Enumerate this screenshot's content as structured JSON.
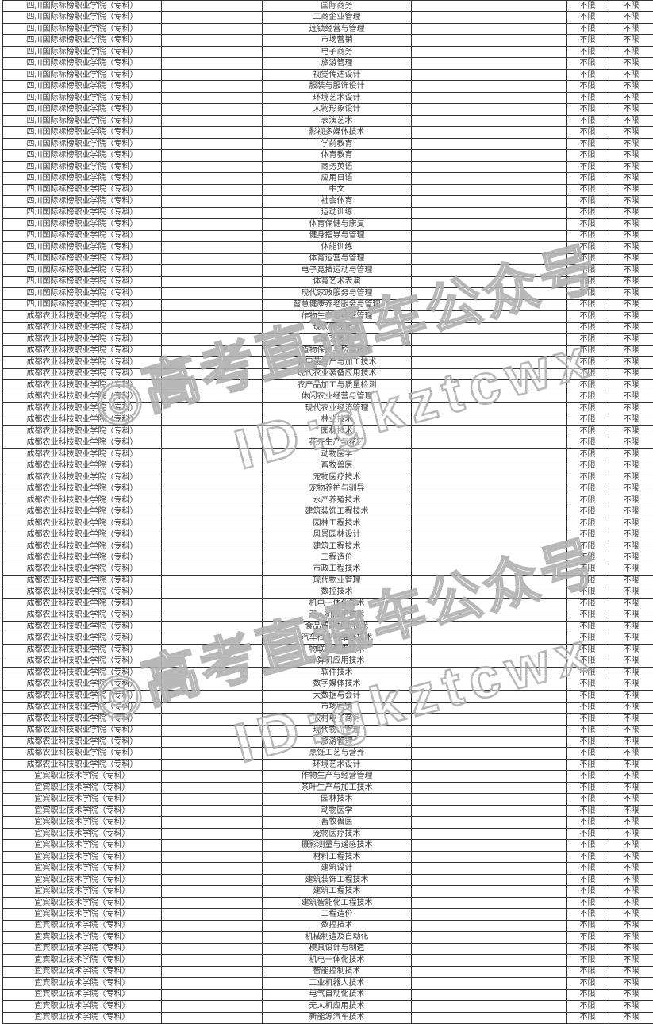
{
  "watermark": {
    "line1": "◎高考直通车公众号",
    "line2": "ID:gkztcwx"
  },
  "colors": {
    "text": "#3a3a3a",
    "border": "#333333",
    "watermark_stroke": "#acacac",
    "background": "#ffffff"
  },
  "table": {
    "no_limit_label": "不限",
    "empty_value": "",
    "groups": [
      {
        "college": "四川国际标榜职业学院（专科）",
        "majors": [
          "国际商务",
          "工商企业管理",
          "连锁经营与管理",
          "市场营销",
          "电子商务",
          "旅游管理",
          "视觉传达设计",
          "服装与服饰设计",
          "环境艺术设计",
          "人物形象设计",
          "表演艺术",
          "影视多媒体技术",
          "学前教育",
          "体育教育",
          "商务英语",
          "应用日语",
          "中文",
          "社会体育",
          "运动训练",
          "体育保健与康复",
          "健身指导与管理",
          "体能训练",
          "体育运营与管理",
          "电子竞技运动与管理",
          "体育艺术表演",
          "现代家政服务与管理",
          "智慧健康养老服务与管理"
        ]
      },
      {
        "college": "成都农业科技职业学院（专科）",
        "majors": [
          "作物生产与经营管理",
          "现代农业技术",
          "园艺技术",
          "植物保护与检疫技术",
          "食用菌生产与加工技术",
          "现代农业装备应用技术",
          "农产品加工与质量检测",
          "休闲农业经营与管理",
          "现代农业经济管理",
          "林业技术",
          "园林技术",
          "花卉生产与花艺",
          "动物医学",
          "畜牧兽医",
          "宠物医疗技术",
          "宠物养护与驯导",
          "水产养殖技术",
          "建筑装饰工程技术",
          "园林工程技术",
          "风景园林设计",
          "建筑工程技术",
          "工程造价",
          "市政工程技术",
          "现代物业管理",
          "数控技术",
          "机电一体化技术",
          "无人机应用技术",
          "食品智能加工技术",
          "汽车检测与维修技术",
          "物联网应用技术",
          "计算机应用技术",
          "软件技术",
          "数字媒体技术",
          "大数据与会计",
          "市场营销",
          "农村电子商务",
          "现代物流管理",
          "旅游管理",
          "烹饪工艺与营养",
          "环境艺术设计"
        ]
      },
      {
        "college": "宜宾职业技术学院（专科）",
        "majors": [
          "作物生产与经营管理",
          "茶叶生产与加工技术",
          "园林技术",
          "动物医学",
          "畜牧兽医",
          "宠物医疗技术",
          "摄影测量与遥感技术",
          "材料工程技术",
          "建筑设计",
          "建筑装饰工程技术",
          "建筑工程技术",
          "建筑智能化工程技术",
          "工程造价",
          "数控技术",
          "机械制造及自动化",
          "模具设计与制造",
          "机电一体化技术",
          "智能控制技术",
          "工业机器人技术",
          "电气自动化技术",
          "无人机应用技术",
          "新能源汽车技术"
        ]
      }
    ]
  }
}
